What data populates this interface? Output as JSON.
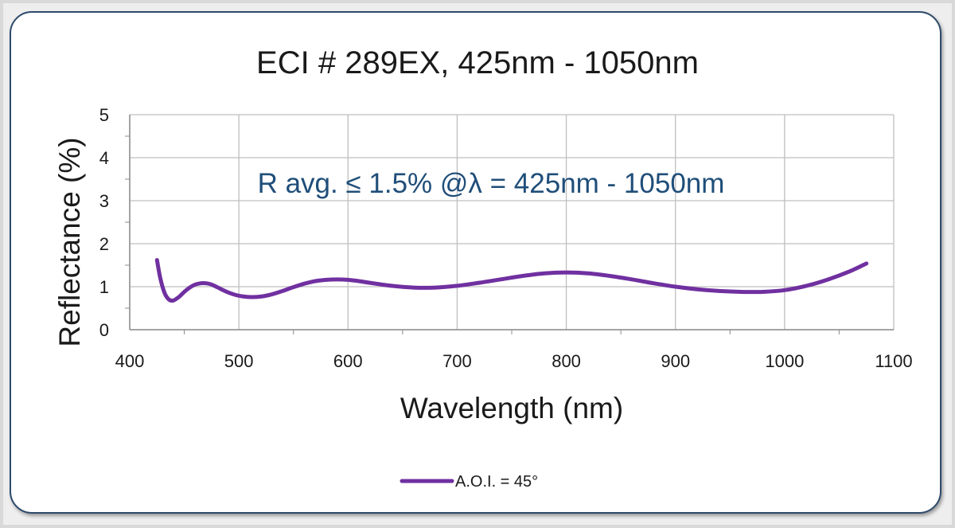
{
  "chart_data": {
    "type": "line",
    "title": "ECI # 289EX, 425nm - 1050nm",
    "annotation": "R avg. ≤ 1.5% @λ = 425nm - 1050nm",
    "xlabel": "Wavelength (nm)",
    "ylabel": "Reflectance (%)",
    "xlim": [
      400,
      1100
    ],
    "ylim": [
      0,
      5
    ],
    "x_ticks": [
      "400",
      "500",
      "600",
      "700",
      "800",
      "900",
      "1000",
      "1100"
    ],
    "y_ticks": [
      "0",
      "1",
      "2",
      "3",
      "4",
      "5"
    ],
    "grid": true,
    "legend_position": "bottom-center",
    "series": [
      {
        "name": "A.O.I. = 45°",
        "color": "#7030a0",
        "x": [
          425,
          428,
          432,
          436,
          440,
          445,
          450,
          455,
          460,
          465,
          470,
          475,
          480,
          490,
          500,
          510,
          520,
          530,
          540,
          550,
          560,
          570,
          580,
          590,
          600,
          610,
          620,
          640,
          660,
          680,
          700,
          720,
          740,
          760,
          780,
          800,
          820,
          840,
          860,
          880,
          900,
          920,
          940,
          960,
          980,
          1000,
          1020,
          1040,
          1060,
          1075
        ],
        "y": [
          1.62,
          1.2,
          0.85,
          0.7,
          0.68,
          0.76,
          0.88,
          0.98,
          1.05,
          1.08,
          1.08,
          1.05,
          0.99,
          0.87,
          0.79,
          0.76,
          0.77,
          0.82,
          0.9,
          0.99,
          1.07,
          1.13,
          1.16,
          1.17,
          1.16,
          1.13,
          1.09,
          1.02,
          0.98,
          0.98,
          1.02,
          1.09,
          1.17,
          1.25,
          1.31,
          1.33,
          1.31,
          1.25,
          1.17,
          1.08,
          1.0,
          0.94,
          0.9,
          0.88,
          0.88,
          0.92,
          1.02,
          1.17,
          1.36,
          1.54
        ]
      }
    ]
  }
}
